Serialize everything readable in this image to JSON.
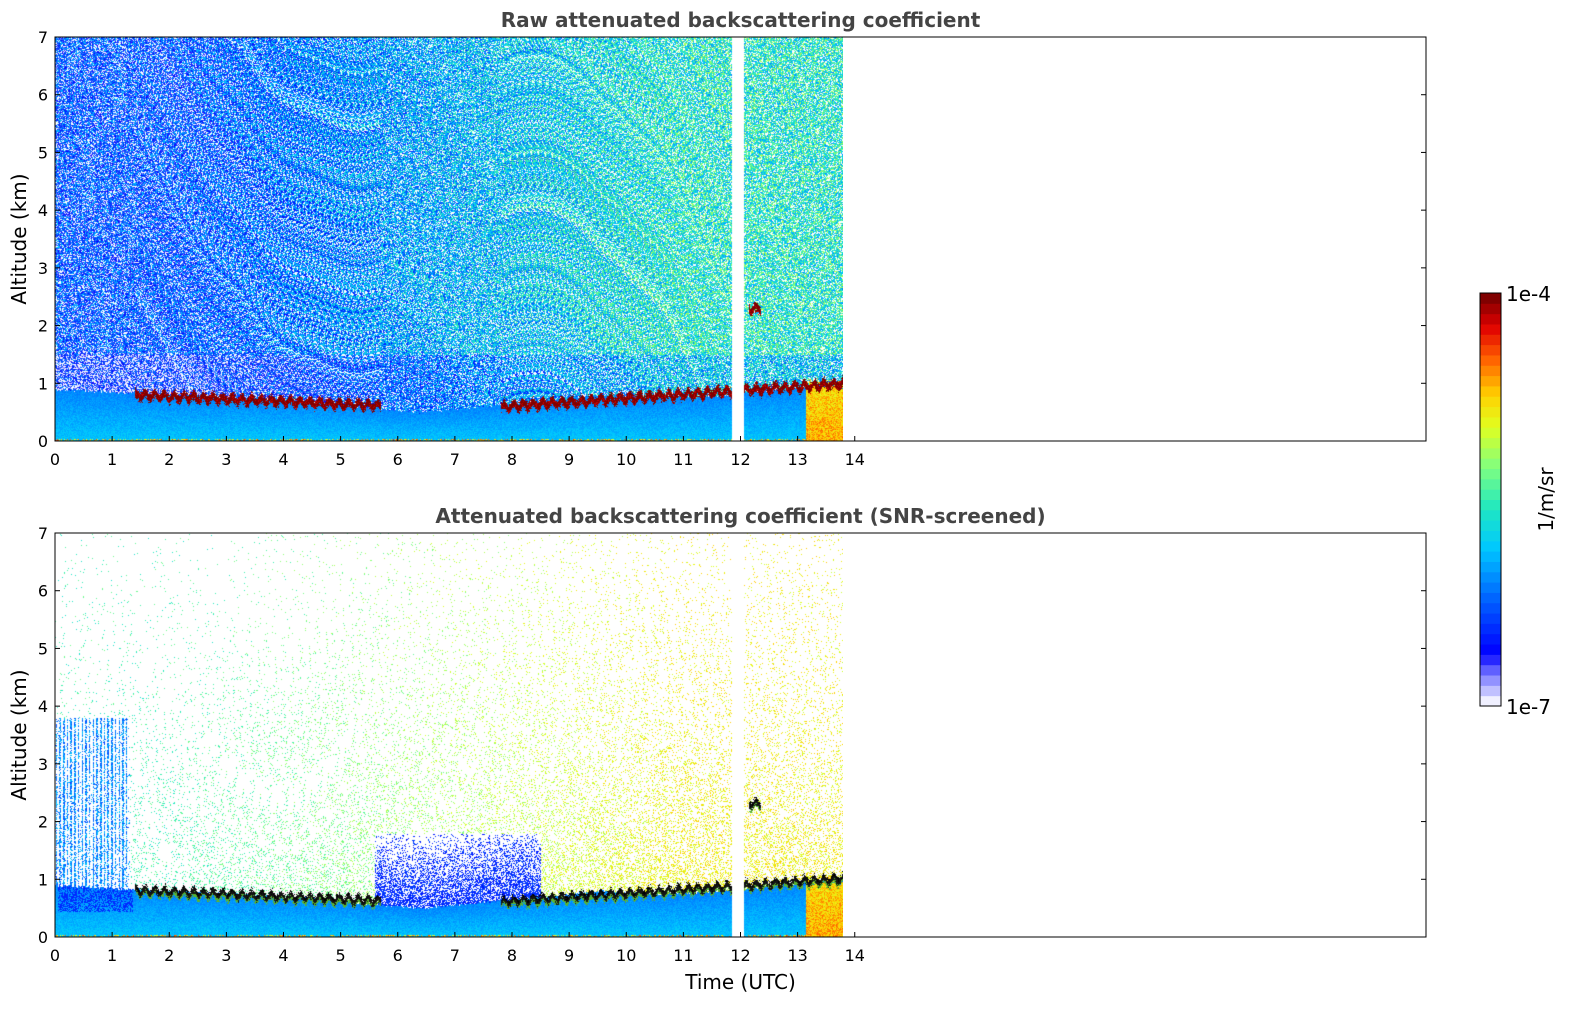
{
  "chart_data": [
    {
      "type": "heatmap",
      "title": "Raw attenuated backscattering coefficient",
      "xlabel": "",
      "ylabel": "Altitude (km)",
      "xlim": [
        0,
        24
      ],
      "ylim": [
        0,
        7
      ],
      "x_ticks": [
        0,
        1,
        2,
        3,
        4,
        5,
        6,
        7,
        8,
        9,
        10,
        11,
        12,
        13,
        14
      ],
      "y_ticks": [
        0,
        1,
        2,
        3,
        4,
        5,
        6,
        7
      ],
      "data_extent_x": [
        0,
        13.8
      ],
      "data_gap_x": [
        11.85,
        12.05
      ],
      "screened": false,
      "layers": [
        {
          "kind": "boundary_layer",
          "x": [
            0,
            13.8
          ],
          "top_km": [
            0.9,
            0.85,
            0.8,
            0.75,
            0.7,
            0.6,
            0.5,
            0.6,
            0.7,
            0.8,
            0.75,
            0.8,
            0.9,
            1.0
          ]
        },
        {
          "kind": "cloud",
          "x": [
            1.4,
            5.7
          ],
          "alt_km": [
            0.8,
            0.62
          ]
        },
        {
          "kind": "cloud",
          "x": [
            7.8,
            13.8
          ],
          "alt_km": [
            0.6,
            1.0
          ]
        },
        {
          "kind": "cloud",
          "x": [
            12.15,
            12.35
          ],
          "alt_km": [
            2.3,
            2.3
          ]
        },
        {
          "kind": "precipitation",
          "x": [
            13.15,
            13.8
          ],
          "alt_km": [
            0,
            1.0
          ]
        }
      ]
    },
    {
      "type": "heatmap",
      "title": "Attenuated backscattering coefficient (SNR-screened)",
      "xlabel": "Time (UTC)",
      "ylabel": "Altitude (km)",
      "xlim": [
        0,
        24
      ],
      "ylim": [
        0,
        7
      ],
      "x_ticks": [
        0,
        1,
        2,
        3,
        4,
        5,
        6,
        7,
        8,
        9,
        10,
        11,
        12,
        13,
        14
      ],
      "y_ticks": [
        0,
        1,
        2,
        3,
        4,
        5,
        6,
        7
      ],
      "data_extent_x": [
        0,
        13.8
      ],
      "data_gap_x": [
        11.85,
        12.05
      ],
      "screened": true,
      "layers": [
        {
          "kind": "boundary_layer",
          "x": [
            0,
            13.8
          ],
          "top_km": [
            0.9,
            0.85,
            0.8,
            0.75,
            0.7,
            0.6,
            0.5,
            0.6,
            0.7,
            0.8,
            0.75,
            0.8,
            0.9,
            1.0
          ]
        },
        {
          "kind": "cloud",
          "x": [
            1.4,
            5.7
          ],
          "alt_km": [
            0.8,
            0.62
          ]
        },
        {
          "kind": "cloud",
          "x": [
            7.8,
            13.8
          ],
          "alt_km": [
            0.6,
            1.0
          ]
        },
        {
          "kind": "cloud",
          "x": [
            12.15,
            12.35
          ],
          "alt_km": [
            2.3,
            2.3
          ]
        },
        {
          "kind": "precipitation",
          "x": [
            13.15,
            13.8
          ],
          "alt_km": [
            0,
            1.0
          ]
        }
      ]
    }
  ],
  "colorbar": {
    "label": "1/m/sr",
    "max_label": "1e-4",
    "min_label": "1e-7",
    "scale": "log",
    "range": [
      1e-07,
      0.0001
    ],
    "colormap": "jet"
  },
  "colors": {
    "title": "#444444",
    "axis": "#000000",
    "cloud": "#8b0000",
    "cloud_screened": "#111111"
  }
}
